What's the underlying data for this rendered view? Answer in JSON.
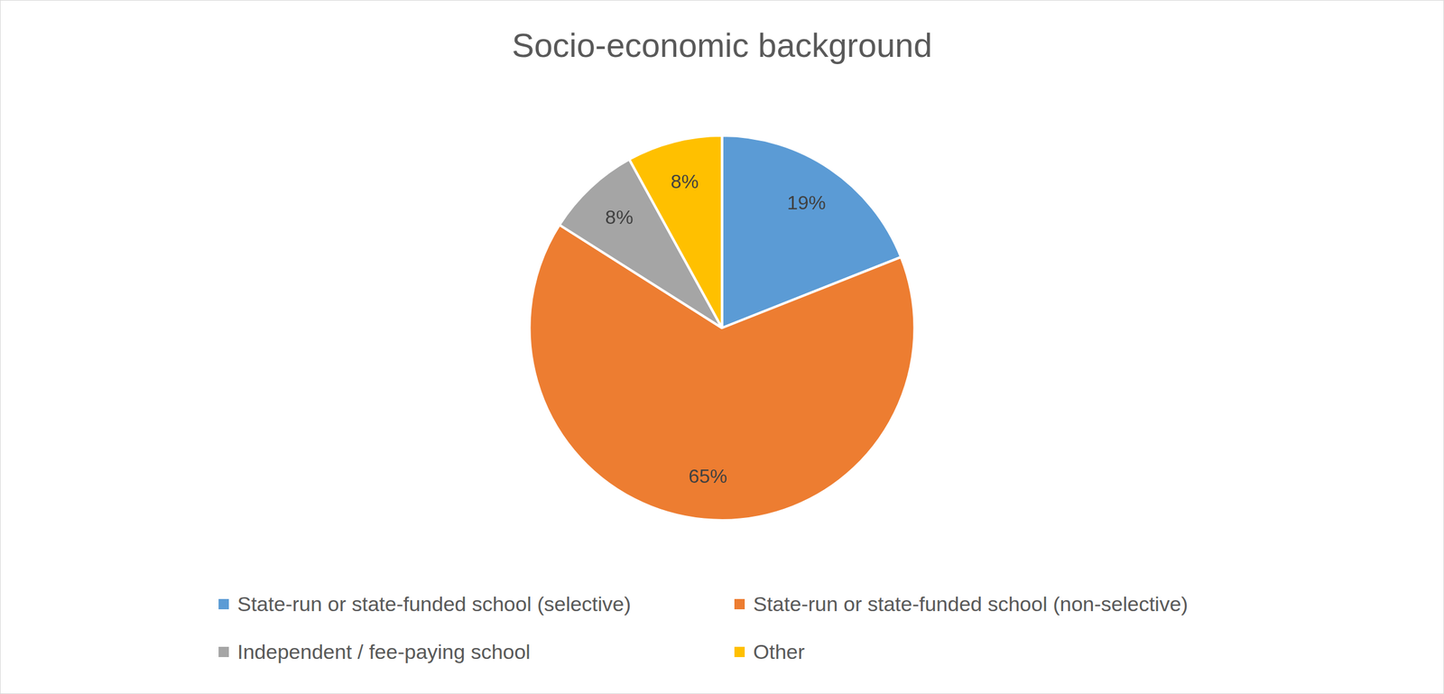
{
  "chart_data": {
    "type": "pie",
    "title": "Socio-economic background",
    "categories": [
      "State-run or state-funded school (selective)",
      "State-run or state-funded school (non-selective)",
      "Independent / fee-paying school",
      "Other"
    ],
    "values": [
      19,
      65,
      8,
      8
    ],
    "value_labels": [
      "19%",
      "65%",
      "8%",
      "8%"
    ],
    "colors": [
      "#5b9bd5",
      "#ed7d31",
      "#a5a5a5",
      "#ffc000"
    ],
    "data_labels": true,
    "legend": "bottom"
  }
}
